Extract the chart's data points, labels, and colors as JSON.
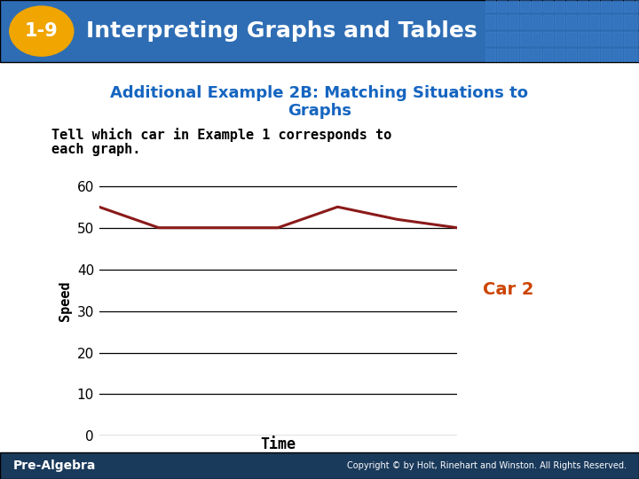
{
  "header_text": "Interpreting Graphs and Tables",
  "header_number": "1-9",
  "header_bg_color": "#2E6DB4",
  "header_number_bg": "#F0A500",
  "subtitle_line1": "Additional Example 2B: Matching Situations to",
  "subtitle_line2": "Graphs",
  "subtitle_color": "#1565C0",
  "instruction_line1": "Tell which car in Example 1 corresponds to",
  "instruction_line2": "each graph.",
  "line_x": [
    0,
    1,
    2,
    3,
    4,
    5,
    6
  ],
  "line_y": [
    55,
    50,
    50,
    50,
    55,
    52,
    50
  ],
  "line_color": "#8B1A1A",
  "ylabel": "Speed",
  "xlabel": "Time",
  "yticks": [
    0,
    10,
    20,
    30,
    40,
    50,
    60
  ],
  "ylim": [
    0,
    65
  ],
  "car_label": "Car 2",
  "car_label_color": "#CC4400",
  "footer_bg": "#1A3A5C",
  "footer_left": "Pre-Algebra",
  "footer_right": "Copyright © by Holt, Rinehart and Winston. All Rights Reserved.",
  "bg_color": "#FFFFFF",
  "grid_color": "#000000",
  "tile_color1": "#3A7BC8",
  "tile_color2": "#4A8BD8"
}
